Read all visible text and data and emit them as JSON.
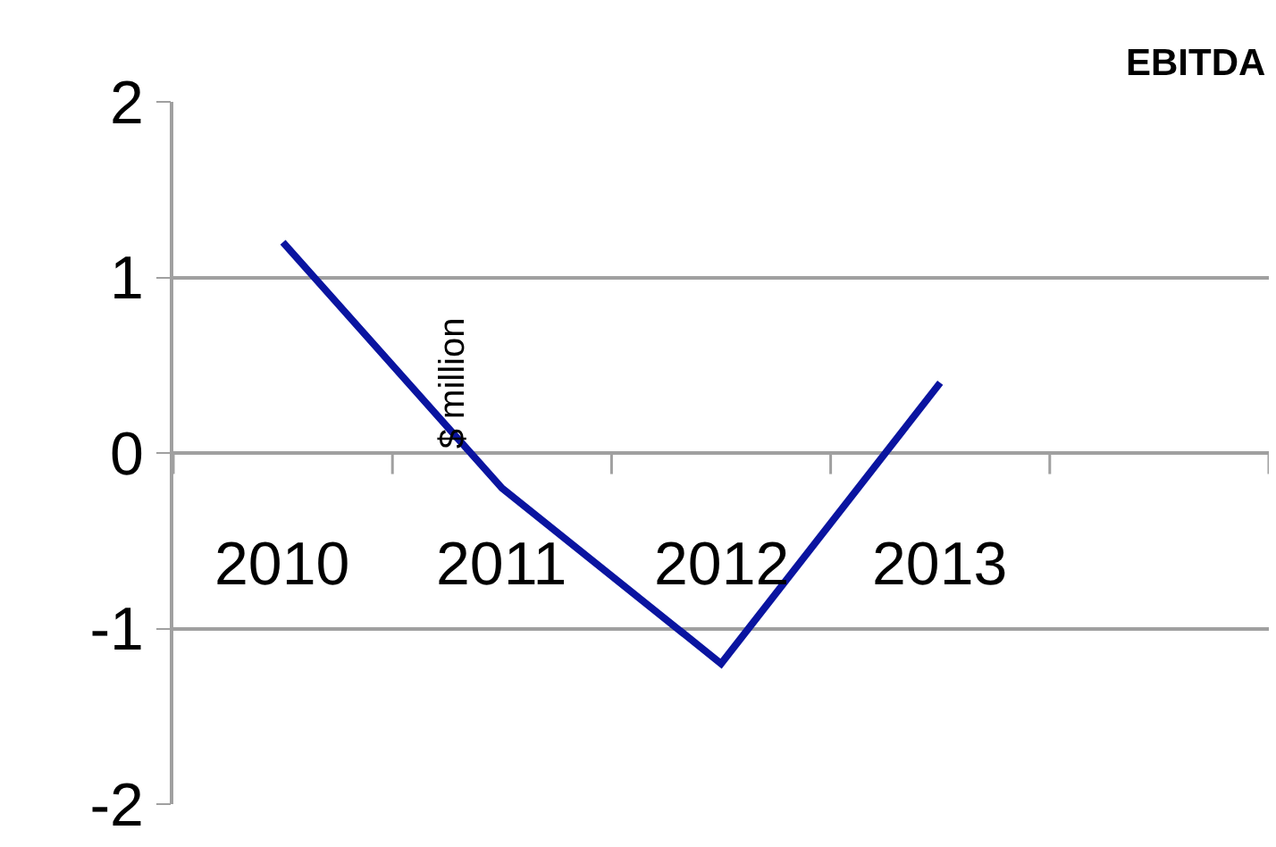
{
  "chart_data": {
    "type": "line",
    "title": "EBITDA",
    "ylabel": "$ million",
    "categories": [
      "2010",
      "2011",
      "2012",
      "2013",
      null
    ],
    "series": [
      {
        "color": "#0a14a0",
        "values": [
          1.2,
          -0.2,
          -1.2,
          0.4,
          null
        ]
      }
    ],
    "ylim": [
      -2,
      2
    ],
    "yticks": [
      -2,
      -1,
      0,
      1,
      2
    ],
    "grid": "y",
    "marker": "none",
    "line_style": "solid"
  }
}
